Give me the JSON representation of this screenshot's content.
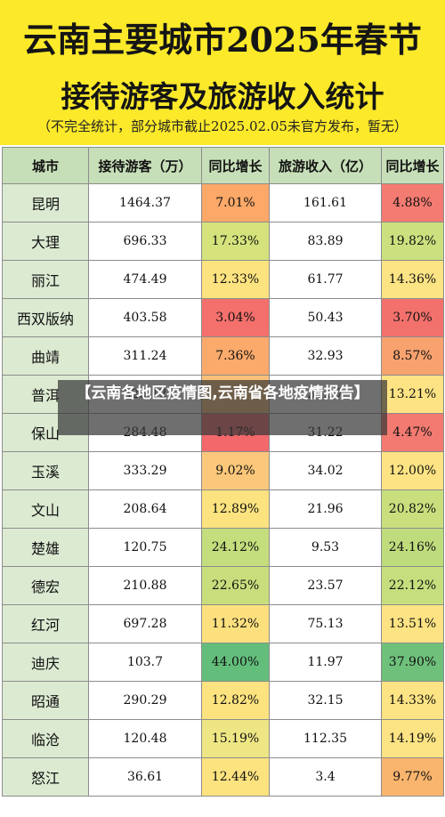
{
  "header": {
    "title_line1": "云南主要城市2025年春节",
    "title_line2": "接待游客及旅游收入统计",
    "subtitle": "（不完全统计，部分城市截止2025.02.05未官方发布，暂无）",
    "background": "#fbe92a"
  },
  "table": {
    "columns": [
      "城市",
      "接待游客（万）",
      "同比增长",
      "旅游收入（亿）",
      "同比增长"
    ],
    "rows": [
      {
        "city": "昆明",
        "visitors": "1464.37",
        "visitors_growth": "7.01%",
        "visitors_growth_color": "#fba868",
        "revenue": "161.61",
        "revenue_growth": "4.88%",
        "revenue_growth_color": "#f47b72"
      },
      {
        "city": "大理",
        "visitors": "696.33",
        "visitors_growth": "17.33%",
        "visitors_growth_color": "#d6e37c",
        "revenue": "83.89",
        "revenue_growth": "19.82%",
        "revenue_growth_color": "#cbe07e"
      },
      {
        "city": "丽江",
        "visitors": "474.49",
        "visitors_growth": "12.33%",
        "visitors_growth_color": "#fde37f",
        "revenue": "61.77",
        "revenue_growth": "14.36%",
        "revenue_growth_color": "#fce384"
      },
      {
        "city": "西双版纳",
        "visitors": "403.58",
        "visitors_growth": "3.04%",
        "visitors_growth_color": "#f4706c",
        "revenue": "50.43",
        "revenue_growth": "3.70%",
        "revenue_growth_color": "#f2716c"
      },
      {
        "city": "曲靖",
        "visitors": "311.24",
        "visitors_growth": "7.36%",
        "visitors_growth_color": "#fbaa6c",
        "revenue": "32.93",
        "revenue_growth": "8.57%",
        "revenue_growth_color": "#f8a270"
      },
      {
        "city": "普洱",
        "visitors": "325.12",
        "visitors_growth": "",
        "visitors_growth_color": "#f9c177",
        "revenue": "34.37",
        "revenue_growth": "13.21%",
        "revenue_growth_color": "#fde383"
      },
      {
        "city": "保山",
        "visitors": "284.48",
        "visitors_growth": "1.17%",
        "visitors_growth_color": "#f2686b",
        "revenue": "31.22",
        "revenue_growth": "4.47%",
        "revenue_growth_color": "#f27a71"
      },
      {
        "city": "玉溪",
        "visitors": "333.29",
        "visitors_growth": "9.02%",
        "visitors_growth_color": "#fbc77a",
        "revenue": "34.02",
        "revenue_growth": "12.00%",
        "revenue_growth_color": "#fde383"
      },
      {
        "city": "文山",
        "visitors": "208.64",
        "visitors_growth": "12.89%",
        "visitors_growth_color": "#fde37f",
        "revenue": "21.96",
        "revenue_growth": "20.82%",
        "revenue_growth_color": "#c9df7e"
      },
      {
        "city": "楚雄",
        "visitors": "120.75",
        "visitors_growth": "24.12%",
        "visitors_growth_color": "#c4dd7d",
        "revenue": "9.53",
        "revenue_growth": "24.16%",
        "revenue_growth_color": "#bfdc7d"
      },
      {
        "city": "德宏",
        "visitors": "210.88",
        "visitors_growth": "22.65%",
        "visitors_growth_color": "#c8de7c",
        "revenue": "23.57",
        "revenue_growth": "22.12%",
        "revenue_growth_color": "#c6de7d"
      },
      {
        "city": "红河",
        "visitors": "697.28",
        "visitors_growth": "11.32%",
        "visitors_growth_color": "#fde07e",
        "revenue": "75.13",
        "revenue_growth": "13.51%",
        "revenue_growth_color": "#fde383"
      },
      {
        "city": "迪庆",
        "visitors": "103.7",
        "visitors_growth": "44.00%",
        "visitors_growth_color": "#63be7b",
        "revenue": "11.97",
        "revenue_growth": "37.90%",
        "revenue_growth_color": "#6ec07a"
      },
      {
        "city": "昭通",
        "visitors": "290.29",
        "visitors_growth": "12.82%",
        "visitors_growth_color": "#fde37f",
        "revenue": "32.15",
        "revenue_growth": "14.33%",
        "revenue_growth_color": "#fce384"
      },
      {
        "city": "临沧",
        "visitors": "120.48",
        "visitors_growth": "15.19%",
        "visitors_growth_color": "#eee684",
        "revenue": "112.35",
        "revenue_growth": "14.19%",
        "revenue_growth_color": "#fce384"
      },
      {
        "city": "怒江",
        "visitors": "36.61",
        "visitors_growth": "12.44%",
        "visitors_growth_color": "#fde37f",
        "revenue": "3.4",
        "revenue_growth": "9.77%",
        "revenue_growth_color": "#f9b56d"
      }
    ]
  },
  "overlay": {
    "text": "【云南各地区疫情图,云南省各地疫情报告】"
  }
}
